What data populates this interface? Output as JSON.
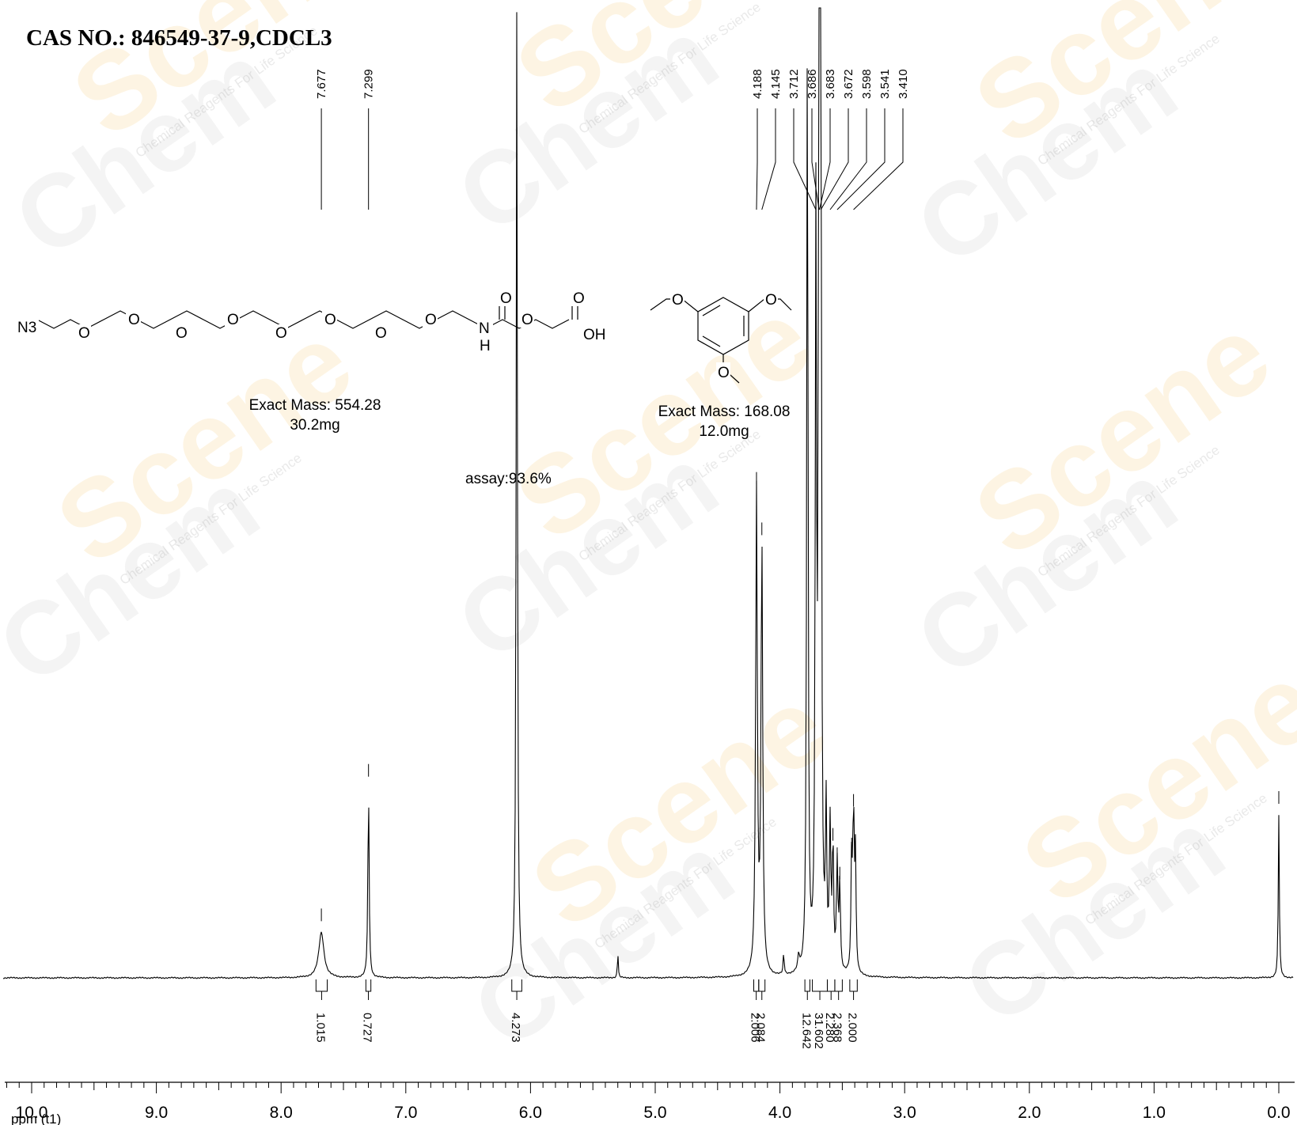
{
  "title": "CAS NO.: 846549-37-9,CDCL3",
  "compound": {
    "mass_label": "Exact Mass: 554.28",
    "amount": "30.2mg",
    "atoms": {
      "n3": "N3",
      "o": "O",
      "nh_n": "N",
      "nh_h": "H",
      "oh": "OH"
    }
  },
  "standard": {
    "mass_label": "Exact Mass: 168.08",
    "amount": "12.0mg"
  },
  "assay": "assay:93.6%",
  "watermark": {
    "brand": "Chem",
    "brand2": "Scene",
    "tagline": "Chemical Reagents For Life Science"
  },
  "chart_data": {
    "type": "line",
    "title": "CAS NO.: 846549-37-9,CDCL3",
    "xlabel": "ppm (t1)",
    "ylabel": "",
    "xlim": [
      10.0,
      0.0
    ],
    "x_reversed": true,
    "grid": false,
    "x_ticks": [
      "10.0",
      "9.0",
      "8.0",
      "7.0",
      "6.0",
      "5.0",
      "4.0",
      "3.0",
      "2.0",
      "1.0",
      "0.0"
    ],
    "peak_labels_left": [
      "7.677",
      "7.299"
    ],
    "peak_labels_right": [
      "4.188",
      "4.145",
      "3.712",
      "3.686",
      "3.683",
      "3.672",
      "3.598",
      "3.541",
      "3.410"
    ],
    "peaks": [
      {
        "ppm": 7.677,
        "height": 0.047,
        "width": 0.025
      },
      {
        "ppm": 7.299,
        "height": 0.196,
        "width": 0.006
      },
      {
        "ppm": 6.11,
        "height": 1.0,
        "width": 0.006
      },
      {
        "ppm": 5.3,
        "height": 0.027,
        "width": 0.004
      },
      {
        "ppm": 4.188,
        "height": 0.497,
        "width": 0.008
      },
      {
        "ppm": 4.145,
        "height": 0.445,
        "width": 0.008
      },
      {
        "ppm": 3.97,
        "height": 0.022,
        "width": 0.005
      },
      {
        "ppm": 3.85,
        "height": 0.015,
        "width": 0.008
      },
      {
        "ppm": 3.78,
        "height": 1.0,
        "width": 0.006
      },
      {
        "ppm": 3.712,
        "height": 0.75,
        "width": 0.006
      },
      {
        "ppm": 3.686,
        "height": 1.0,
        "width": 0.005
      },
      {
        "ppm": 3.683,
        "height": 1.0,
        "width": 0.005
      },
      {
        "ppm": 3.672,
        "height": 1.0,
        "width": 0.005
      },
      {
        "ppm": 3.63,
        "height": 0.16,
        "width": 0.006
      },
      {
        "ppm": 3.598,
        "height": 0.145,
        "width": 0.007
      },
      {
        "ppm": 3.575,
        "height": 0.13,
        "width": 0.006
      },
      {
        "ppm": 3.541,
        "height": 0.11,
        "width": 0.007
      },
      {
        "ppm": 3.52,
        "height": 0.09,
        "width": 0.006
      },
      {
        "ppm": 3.425,
        "height": 0.12,
        "width": 0.006
      },
      {
        "ppm": 3.41,
        "height": 0.165,
        "width": 0.006
      },
      {
        "ppm": 3.395,
        "height": 0.12,
        "width": 0.006
      },
      {
        "ppm": 0.0,
        "height": 0.168,
        "width": 0.005
      }
    ],
    "integrals": [
      {
        "from": 7.72,
        "to": 7.63,
        "label": "1.015"
      },
      {
        "from": 7.32,
        "to": 7.28,
        "label": "0.727"
      },
      {
        "from": 6.15,
        "to": 6.07,
        "label": "4.273"
      },
      {
        "from": 4.21,
        "to": 4.17,
        "label": "2.006"
      },
      {
        "from": 4.17,
        "to": 4.12,
        "label": "2.084"
      },
      {
        "from": 3.8,
        "to": 3.76,
        "label": "12.642"
      },
      {
        "from": 3.74,
        "to": 3.62,
        "label": "31.602"
      },
      {
        "from": 3.62,
        "to": 3.56,
        "label": "2.280"
      },
      {
        "from": 3.56,
        "to": 3.5,
        "label": "2.368"
      },
      {
        "from": 3.44,
        "to": 3.38,
        "label": "2.000"
      }
    ]
  }
}
